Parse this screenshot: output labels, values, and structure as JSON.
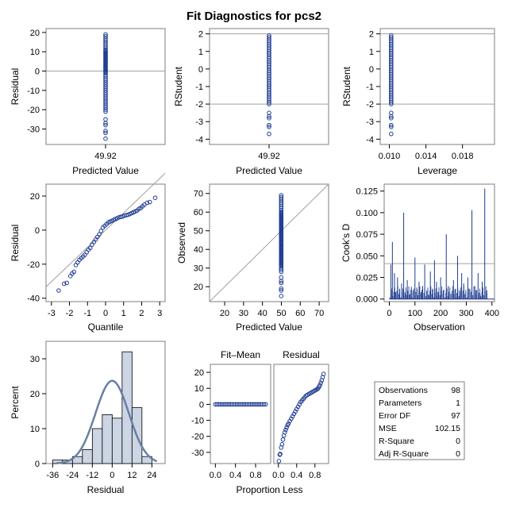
{
  "title": "Fit Diagnostics for pcs2",
  "colors": {
    "marker": "#1f3c91",
    "refline": "#a0a0a0",
    "frame": "#7f7f7f",
    "hist_fill": "#cbd5e4",
    "curve": "#6a7fa3",
    "background": "#ffffff"
  },
  "chart_data": [
    {
      "id": "p1",
      "type": "scatter",
      "xlabel": "Predicted Value",
      "ylabel": "Residual",
      "xticks": [
        "49.92"
      ],
      "ylim": [
        -38,
        22
      ],
      "yticks": [
        -30,
        -20,
        -10,
        0,
        10,
        20
      ],
      "x_value": 49.92,
      "points": [
        19,
        18,
        17,
        16,
        15,
        14,
        13,
        12,
        11,
        10.5,
        10,
        9.5,
        9,
        8.5,
        8,
        7.5,
        7,
        6.5,
        6,
        5.5,
        5,
        4.5,
        4,
        3.5,
        3,
        2.5,
        2,
        1.5,
        1,
        0.5,
        0,
        -0.5,
        -1,
        -2,
        -3,
        -4,
        -5,
        -6,
        -7,
        -8,
        -9,
        -10,
        -11,
        -12,
        -13,
        -14,
        -15,
        -16,
        -17,
        -18,
        -19,
        -20,
        -21,
        -25,
        -27,
        -28,
        -31,
        -32,
        -35
      ],
      "reflines_y": [
        0
      ]
    },
    {
      "id": "p2",
      "type": "scatter",
      "xlabel": "Predicted Value",
      "ylabel": "RStudent",
      "xticks": [
        "49.92"
      ],
      "ylim": [
        -4.3,
        2.3
      ],
      "yticks": [
        -4,
        -3,
        -2,
        -1,
        0,
        1,
        2
      ],
      "x_value": 49.92,
      "points": [
        1.9,
        1.8,
        1.7,
        1.6,
        1.5,
        1.4,
        1.3,
        1.2,
        1.1,
        1.0,
        0.9,
        0.8,
        0.7,
        0.6,
        0.5,
        0.4,
        0.3,
        0.2,
        0.1,
        0.0,
        -0.1,
        -0.2,
        -0.3,
        -0.4,
        -0.5,
        -0.6,
        -0.7,
        -0.8,
        -0.9,
        -1.0,
        -1.1,
        -1.2,
        -1.3,
        -1.4,
        -1.5,
        -1.6,
        -1.7,
        -1.8,
        -1.9,
        -2.0,
        -2.5,
        -2.7,
        -2.8,
        -3.2,
        -3.3,
        -3.7
      ],
      "reflines_y": [
        2,
        -2
      ]
    },
    {
      "id": "p3",
      "type": "scatter",
      "xlabel": "Leverage",
      "ylabel": "RStudent",
      "xlim": [
        0.009,
        0.0215
      ],
      "xticks": [
        0.01,
        0.014,
        0.018
      ],
      "xtick_labels": [
        "0.010",
        "0.014",
        "0.018"
      ],
      "ylim": [
        -4.3,
        2.3
      ],
      "yticks": [
        -4,
        -3,
        -2,
        -1,
        0,
        1,
        2
      ],
      "x_value": 0.0102,
      "points": [
        1.9,
        1.8,
        1.7,
        1.6,
        1.5,
        1.4,
        1.3,
        1.2,
        1.1,
        1.0,
        0.9,
        0.8,
        0.7,
        0.6,
        0.5,
        0.4,
        0.3,
        0.2,
        0.1,
        0.0,
        -0.1,
        -0.2,
        -0.3,
        -0.4,
        -0.5,
        -0.6,
        -0.7,
        -0.8,
        -0.9,
        -1.0,
        -1.1,
        -1.2,
        -1.3,
        -1.4,
        -1.5,
        -1.6,
        -1.7,
        -1.8,
        -1.9,
        -2.0,
        -2.5,
        -2.7,
        -2.8,
        -3.2,
        -3.3,
        -3.7
      ],
      "reflines_y": [
        2,
        -2
      ]
    },
    {
      "id": "p4",
      "type": "scatter",
      "xlabel": "Quantile",
      "ylabel": "Residual",
      "xlim": [
        -3.3,
        3.3
      ],
      "xticks": [
        -3,
        -2,
        -1,
        0,
        1,
        2,
        3
      ],
      "ylim": [
        -42,
        27
      ],
      "yticks": [
        -40,
        -20,
        0,
        20
      ],
      "qq": true,
      "qq_line": {
        "slope": 10.1,
        "intercept": 0
      },
      "points": [
        [
          -2.6,
          -35.5
        ],
        [
          -2.3,
          -31.5
        ],
        [
          -2.15,
          -31
        ],
        [
          -1.95,
          -27
        ],
        [
          -1.85,
          -25.5
        ],
        [
          -1.75,
          -24.5
        ],
        [
          -1.65,
          -20.5
        ],
        [
          -1.55,
          -19
        ],
        [
          -1.45,
          -17.5
        ],
        [
          -1.35,
          -16.5
        ],
        [
          -1.25,
          -15.5
        ],
        [
          -1.15,
          -14.5
        ],
        [
          -1.05,
          -13
        ],
        [
          -0.95,
          -11.5
        ],
        [
          -0.85,
          -10.5
        ],
        [
          -0.75,
          -8.5
        ],
        [
          -0.65,
          -7
        ],
        [
          -0.55,
          -5.5
        ],
        [
          -0.45,
          -4
        ],
        [
          -0.35,
          -2.5
        ],
        [
          -0.25,
          -0.5
        ],
        [
          -0.15,
          1.5
        ],
        [
          -0.05,
          2.5
        ],
        [
          0.05,
          3.5
        ],
        [
          0.15,
          4.5
        ],
        [
          0.25,
          5
        ],
        [
          0.35,
          5.5
        ],
        [
          0.45,
          6
        ],
        [
          0.55,
          6.5
        ],
        [
          0.65,
          7
        ],
        [
          0.75,
          7.5
        ],
        [
          0.85,
          7.8
        ],
        [
          0.95,
          8
        ],
        [
          1.05,
          8.5
        ],
        [
          1.15,
          8.8
        ],
        [
          1.25,
          9
        ],
        [
          1.35,
          9.5
        ],
        [
          1.45,
          10
        ],
        [
          1.55,
          10.5
        ],
        [
          1.65,
          11
        ],
        [
          1.75,
          11.5
        ],
        [
          1.85,
          12.5
        ],
        [
          1.95,
          13
        ],
        [
          2.05,
          14
        ],
        [
          2.15,
          15
        ],
        [
          2.3,
          16
        ],
        [
          2.45,
          16.5
        ],
        [
          2.75,
          19
        ]
      ]
    },
    {
      "id": "p5",
      "type": "scatter",
      "xlabel": "Predicted Value",
      "ylabel": "Observed",
      "xlim": [
        12,
        75
      ],
      "xticks": [
        20,
        30,
        40,
        50,
        60,
        70
      ],
      "ylim": [
        12,
        75
      ],
      "yticks": [
        20,
        30,
        40,
        50,
        60,
        70
      ],
      "x_value": 49.92,
      "diagonal": true,
      "points": [
        69,
        68,
        67,
        66,
        65,
        64,
        63,
        62,
        61,
        60,
        59.5,
        59,
        58.5,
        58,
        57.5,
        57,
        56.5,
        56,
        55.5,
        55,
        54.5,
        54,
        53.5,
        53,
        52.5,
        52,
        51.5,
        51,
        50.5,
        50,
        49.5,
        49,
        48.5,
        48,
        47.5,
        47,
        46.5,
        46,
        45.5,
        45,
        44.5,
        44,
        43.5,
        43,
        42.5,
        42,
        41.5,
        41,
        40.5,
        40,
        39.5,
        39,
        38.5,
        38,
        37.5,
        37,
        36.5,
        36,
        35.5,
        35,
        34.5,
        34,
        33.5,
        33,
        32.5,
        32,
        31.5,
        31,
        30,
        29,
        28,
        25,
        23,
        22,
        19,
        18,
        15
      ]
    },
    {
      "id": "p6",
      "type": "needle",
      "xlabel": "Observation",
      "ylabel": "Cook's D",
      "xlim": [
        -20,
        410
      ],
      "xticks": [
        0,
        100,
        200,
        300,
        400
      ],
      "ylim": [
        -0.003,
        0.133
      ],
      "yticks": [
        0.0,
        0.025,
        0.05,
        0.075,
        0.1,
        0.125
      ],
      "ytick_labels": [
        "0.000",
        "0.025",
        "0.050",
        "0.075",
        "0.100",
        "0.125"
      ],
      "refline_y": 0.041,
      "spikes": [
        [
          6,
          0.04
        ],
        [
          12,
          0.066
        ],
        [
          20,
          0.03
        ],
        [
          25,
          0.008
        ],
        [
          32,
          0.025
        ],
        [
          40,
          0.012
        ],
        [
          48,
          0.018
        ],
        [
          56,
          0.1
        ],
        [
          62,
          0.006
        ],
        [
          70,
          0.022
        ],
        [
          78,
          0.005
        ],
        [
          86,
          0.014
        ],
        [
          92,
          0.01
        ],
        [
          100,
          0.048
        ],
        [
          108,
          0.012
        ],
        [
          116,
          0.02
        ],
        [
          124,
          0.008
        ],
        [
          130,
          0.015
        ],
        [
          138,
          0.04
        ],
        [
          146,
          0.01
        ],
        [
          152,
          0.005
        ],
        [
          160,
          0.032
        ],
        [
          168,
          0.012
        ],
        [
          176,
          0.045
        ],
        [
          184,
          0.02
        ],
        [
          192,
          0.008
        ],
        [
          200,
          0.025
        ],
        [
          210,
          0.01
        ],
        [
          222,
          0.075
        ],
        [
          230,
          0.015
        ],
        [
          240,
          0.006
        ],
        [
          250,
          0.022
        ],
        [
          258,
          0.012
        ],
        [
          266,
          0.05
        ],
        [
          274,
          0.01
        ],
        [
          282,
          0.03
        ],
        [
          290,
          0.018
        ],
        [
          298,
          0.008
        ],
        [
          306,
          0.025
        ],
        [
          314,
          0.012
        ],
        [
          322,
          0.103
        ],
        [
          330,
          0.015
        ],
        [
          338,
          0.01
        ],
        [
          346,
          0.03
        ],
        [
          354,
          0.006
        ],
        [
          362,
          0.02
        ],
        [
          372,
          0.128
        ],
        [
          380,
          0.01
        ]
      ]
    },
    {
      "id": "p7",
      "type": "histogram",
      "xlabel": "Residual",
      "ylabel": "Percent",
      "xlim": [
        -40,
        32
      ],
      "xticks": [
        -36,
        -24,
        -12,
        0,
        12,
        24
      ],
      "ylim": [
        0,
        35
      ],
      "yticks": [
        0,
        10,
        20,
        30
      ],
      "bin_width": 6,
      "bins": [
        [
          -36,
          1
        ],
        [
          -30,
          1
        ],
        [
          -24,
          2
        ],
        [
          -18,
          4
        ],
        [
          -12,
          10
        ],
        [
          -6,
          14
        ],
        [
          0,
          13
        ],
        [
          6,
          32
        ],
        [
          12,
          16
        ],
        [
          18,
          2
        ]
      ],
      "normal_curve": {
        "mean": 0,
        "sd": 10.1
      }
    },
    {
      "id": "p8",
      "type": "rf_spread",
      "xlabel": "Proportion Less",
      "panel_titles": [
        "Fit–Mean",
        "Residual"
      ],
      "xlim": [
        -0.1,
        1.1
      ],
      "xticks": [
        0.0,
        0.4,
        0.8
      ],
      "xtick_labels": [
        "0.0",
        "0.4",
        "0.8"
      ],
      "ylim": [
        -37,
        25
      ],
      "yticks": [
        -30,
        -20,
        -10,
        0,
        10,
        20
      ],
      "fit_mean_value": 0,
      "residual_points": [
        [
          0.01,
          -35.5
        ],
        [
          0.03,
          -31.5
        ],
        [
          0.04,
          -31
        ],
        [
          0.06,
          -27
        ],
        [
          0.08,
          -25
        ],
        [
          0.1,
          -22
        ],
        [
          0.12,
          -19.5
        ],
        [
          0.14,
          -17.5
        ],
        [
          0.16,
          -16
        ],
        [
          0.18,
          -14.5
        ],
        [
          0.2,
          -13
        ],
        [
          0.22,
          -12
        ],
        [
          0.25,
          -10.5
        ],
        [
          0.28,
          -9
        ],
        [
          0.31,
          -7.5
        ],
        [
          0.34,
          -6
        ],
        [
          0.37,
          -4.5
        ],
        [
          0.4,
          -3
        ],
        [
          0.43,
          -1.5
        ],
        [
          0.46,
          0
        ],
        [
          0.49,
          1.5
        ],
        [
          0.52,
          2.5
        ],
        [
          0.55,
          3.5
        ],
        [
          0.58,
          4.5
        ],
        [
          0.61,
          5.5
        ],
        [
          0.64,
          6
        ],
        [
          0.67,
          6.5
        ],
        [
          0.7,
          7
        ],
        [
          0.73,
          7.5
        ],
        [
          0.76,
          8
        ],
        [
          0.79,
          8.5
        ],
        [
          0.82,
          9
        ],
        [
          0.85,
          9.5
        ],
        [
          0.87,
          10
        ],
        [
          0.89,
          11
        ],
        [
          0.91,
          12
        ],
        [
          0.93,
          13.5
        ],
        [
          0.95,
          15
        ],
        [
          0.97,
          17
        ],
        [
          0.99,
          19
        ]
      ]
    },
    {
      "id": "stats",
      "type": "table",
      "rows": [
        {
          "label": "Observations",
          "value": "98"
        },
        {
          "label": "Parameters",
          "value": "1"
        },
        {
          "label": "Error DF",
          "value": "97"
        },
        {
          "label": "MSE",
          "value": "102.15"
        },
        {
          "label": "R-Square",
          "value": "0"
        },
        {
          "label": "Adj R-Square",
          "value": "0"
        }
      ]
    }
  ]
}
